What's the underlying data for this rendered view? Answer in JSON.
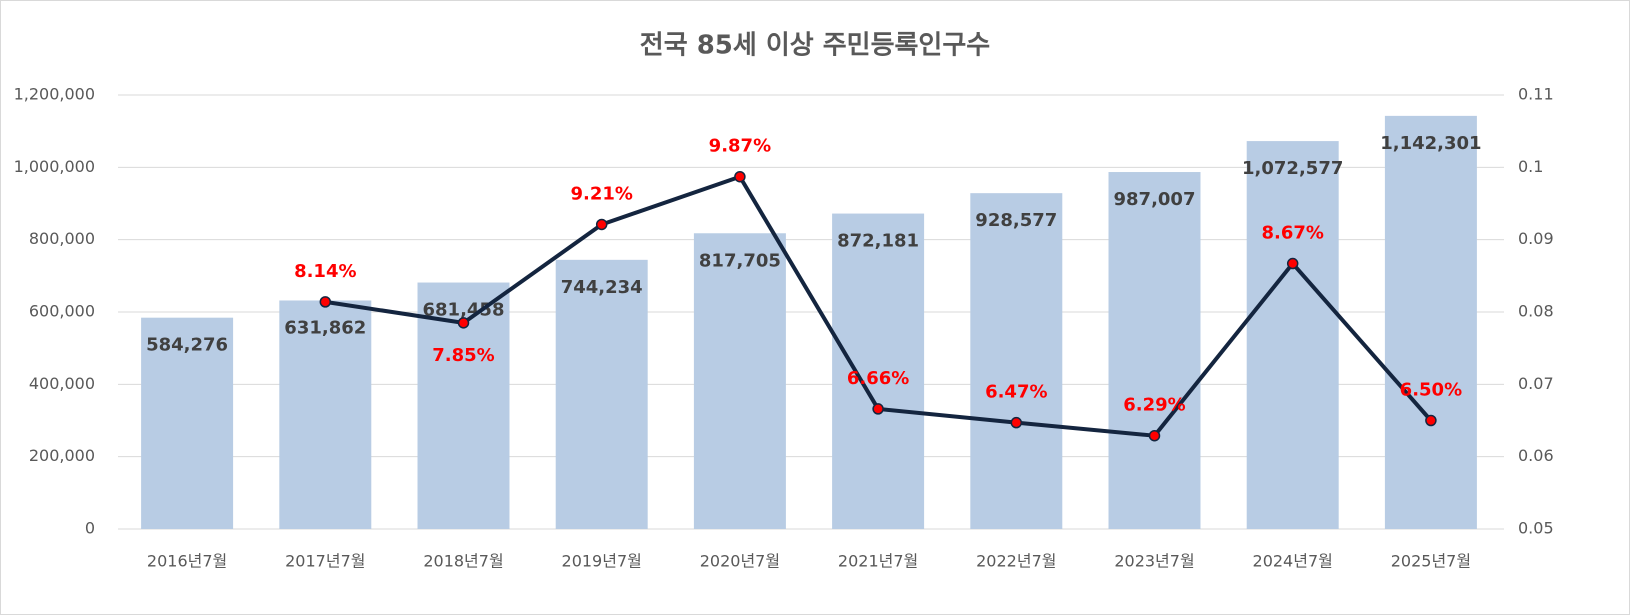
{
  "chart_data": {
    "type": "bar_line",
    "title": "전국 85세 이상 주민등록인구수",
    "categories": [
      "2016년7월",
      "2017년7월",
      "2018년7월",
      "2019년7월",
      "2020년7월",
      "2021년7월",
      "2022년7월",
      "2023년7월",
      "2024년7월",
      "2025년7월"
    ],
    "series": [
      {
        "type": "bar",
        "color": "#b8cce4",
        "values": [
          584276,
          631862,
          681458,
          744234,
          817705,
          872181,
          928577,
          987007,
          1072577,
          1142301
        ],
        "value_labels": [
          "584,276",
          "631,862",
          "681,458",
          "744,234",
          "817,705",
          "872,181",
          "928,577",
          "987,007",
          "1,072,577",
          "1,142,301"
        ]
      },
      {
        "type": "line",
        "axis": "y2",
        "color": "#14253f",
        "marker_color": "#ff0000",
        "values": [
          null,
          0.0814,
          0.0785,
          0.0921,
          0.0987,
          0.0666,
          0.0647,
          0.0629,
          0.0867,
          0.065
        ],
        "value_labels": [
          null,
          "8.14%",
          "7.85%",
          "9.21%",
          "9.87%",
          "6.66%",
          "6.47%",
          "6.29%",
          "8.67%",
          "6.50%"
        ]
      }
    ],
    "ylim": [
      0,
      1200000
    ],
    "yticks": [
      0,
      {
        "value": 200000,
        "label": "200,000"
      },
      {
        "value": 400000,
        "label": "400,000"
      },
      {
        "value": 600000,
        "label": "600,000"
      },
      {
        "value": 800000,
        "label": "800,000"
      },
      {
        "value": 1000000,
        "label": "1,000,000"
      },
      {
        "value": 1200000,
        "label": "1,200,000"
      }
    ],
    "y2lim": [
      0.05,
      0.11
    ],
    "y2ticks": [
      0.05,
      0.06,
      0.07,
      0.08,
      0.09,
      0.1,
      0.11
    ],
    "grid": true
  }
}
